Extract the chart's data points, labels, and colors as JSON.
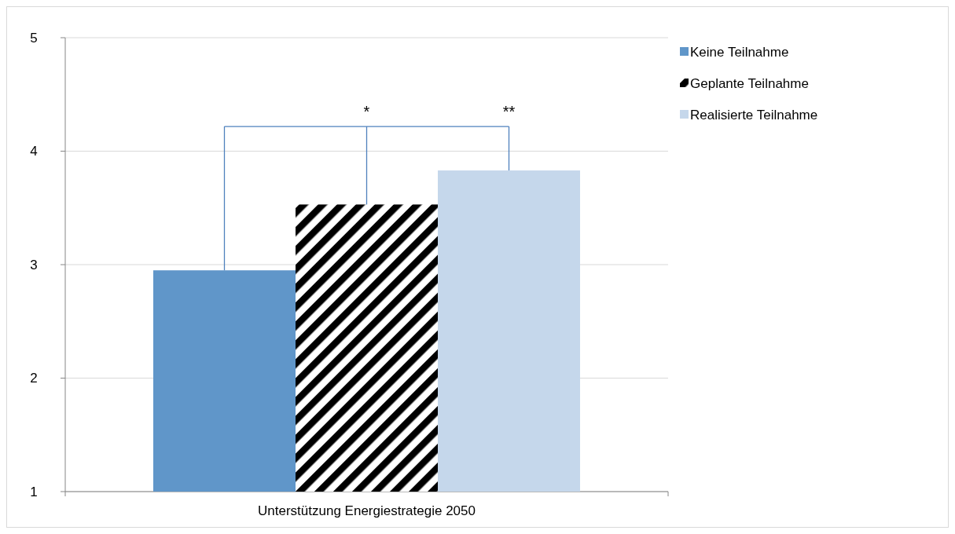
{
  "chart_data": {
    "type": "bar",
    "categories": [
      "Unterstützung Energiestrategie 2050"
    ],
    "series": [
      {
        "name": "Keine Teilnahme",
        "color": "#6096c9",
        "values": [
          2.95
        ]
      },
      {
        "name": "Geplante Teilnahme",
        "color": "#000000",
        "values": [
          3.53
        ]
      },
      {
        "name": "Realisierte Teilnahme",
        "color": "#c5d7eb",
        "values": [
          3.83
        ]
      }
    ],
    "ylim": [
      1,
      5
    ],
    "yticks": [
      1,
      2,
      3,
      4,
      5
    ],
    "grid": "y",
    "legend": "right",
    "annotations": [
      "*",
      "**"
    ]
  }
}
